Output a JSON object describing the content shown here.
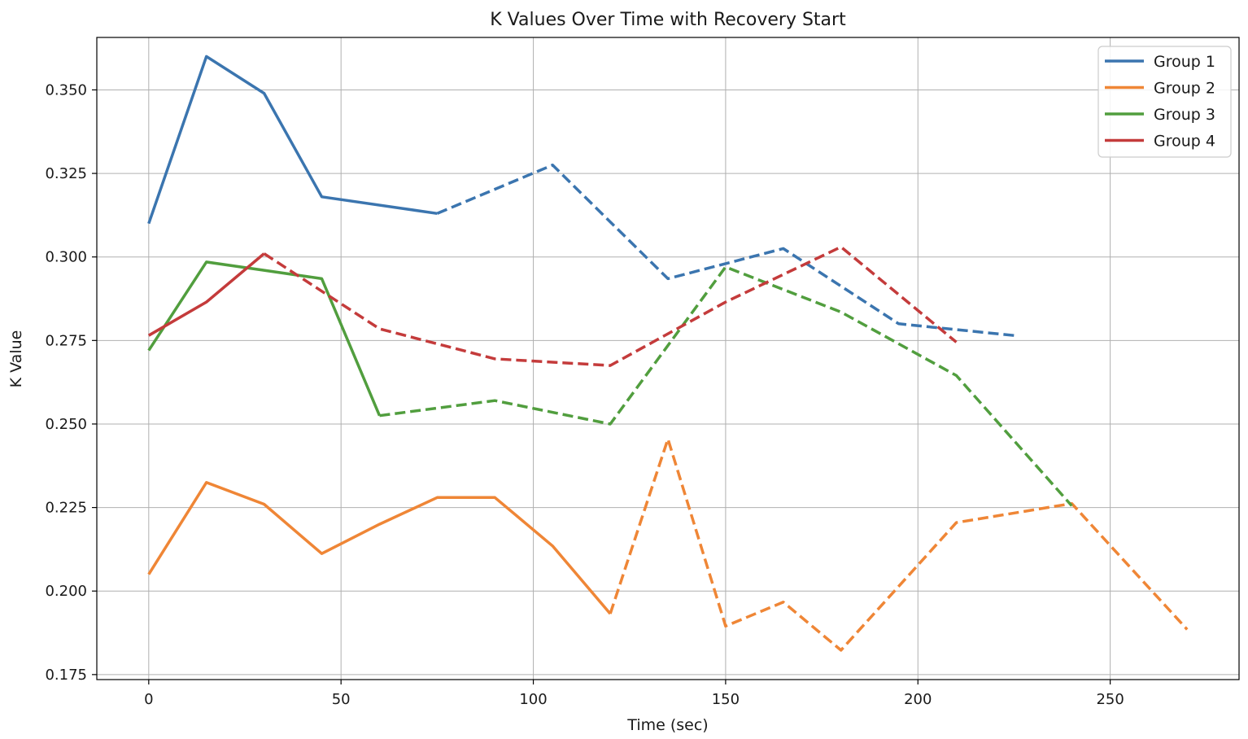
{
  "chart_data": {
    "type": "line",
    "title": "K Values Over Time with Recovery Start",
    "xlabel": "Time (sec)",
    "ylabel": "K Value",
    "xlim": [
      -13.5,
      283.5
    ],
    "ylim": [
      0.1735,
      0.3657
    ],
    "xticks": [
      0,
      50,
      100,
      150,
      200,
      250
    ],
    "yticks": [
      0.175,
      0.2,
      0.225,
      0.25,
      0.275,
      0.3,
      0.325,
      0.35
    ],
    "xtick_labels": [
      "0",
      "50",
      "100",
      "150",
      "200",
      "250"
    ],
    "ytick_labels": [
      "0.175",
      "0.200",
      "0.225",
      "0.250",
      "0.275",
      "0.300",
      "0.325",
      "0.350"
    ],
    "grid": true,
    "legend_position": "top-right",
    "line_styles": {
      "before_recovery": "solid",
      "after_recovery": "dashed"
    },
    "series": [
      {
        "name": "Group 1",
        "color": "#3b75af",
        "recovery_start": 75,
        "x": [
          0,
          15,
          30,
          45,
          75,
          105,
          135,
          165,
          195,
          225
        ],
        "values": [
          0.31,
          0.36,
          0.349,
          0.318,
          0.313,
          0.3275,
          0.2935,
          0.3025,
          0.28,
          0.2765
        ]
      },
      {
        "name": "Group 2",
        "color": "#ef8636",
        "recovery_start": 120,
        "x": [
          0,
          15,
          30,
          45,
          60,
          75,
          90,
          105,
          120,
          135,
          150,
          165,
          180,
          210,
          240,
          270
        ],
        "values": [
          0.205,
          0.2325,
          0.226,
          0.2112,
          0.22,
          0.228,
          0.228,
          0.2135,
          0.1932,
          0.2455,
          0.1895,
          0.1967,
          0.1823,
          0.2205,
          0.2262,
          0.1885
        ]
      },
      {
        "name": "Group 3",
        "color": "#519e3e",
        "recovery_start": 60,
        "x": [
          0,
          15,
          30,
          45,
          60,
          90,
          120,
          150,
          180,
          210,
          240
        ],
        "values": [
          0.272,
          0.2985,
          0.296,
          0.2935,
          0.2525,
          0.257,
          0.25,
          0.297,
          0.2835,
          0.2645,
          0.2255
        ]
      },
      {
        "name": "Group 4",
        "color": "#c43b3b",
        "recovery_start": 30,
        "x": [
          0,
          15,
          30,
          60,
          90,
          120,
          150,
          180,
          210
        ],
        "values": [
          0.2765,
          0.2865,
          0.301,
          0.2785,
          0.2695,
          0.2675,
          0.2865,
          0.303,
          0.2745
        ]
      }
    ]
  }
}
